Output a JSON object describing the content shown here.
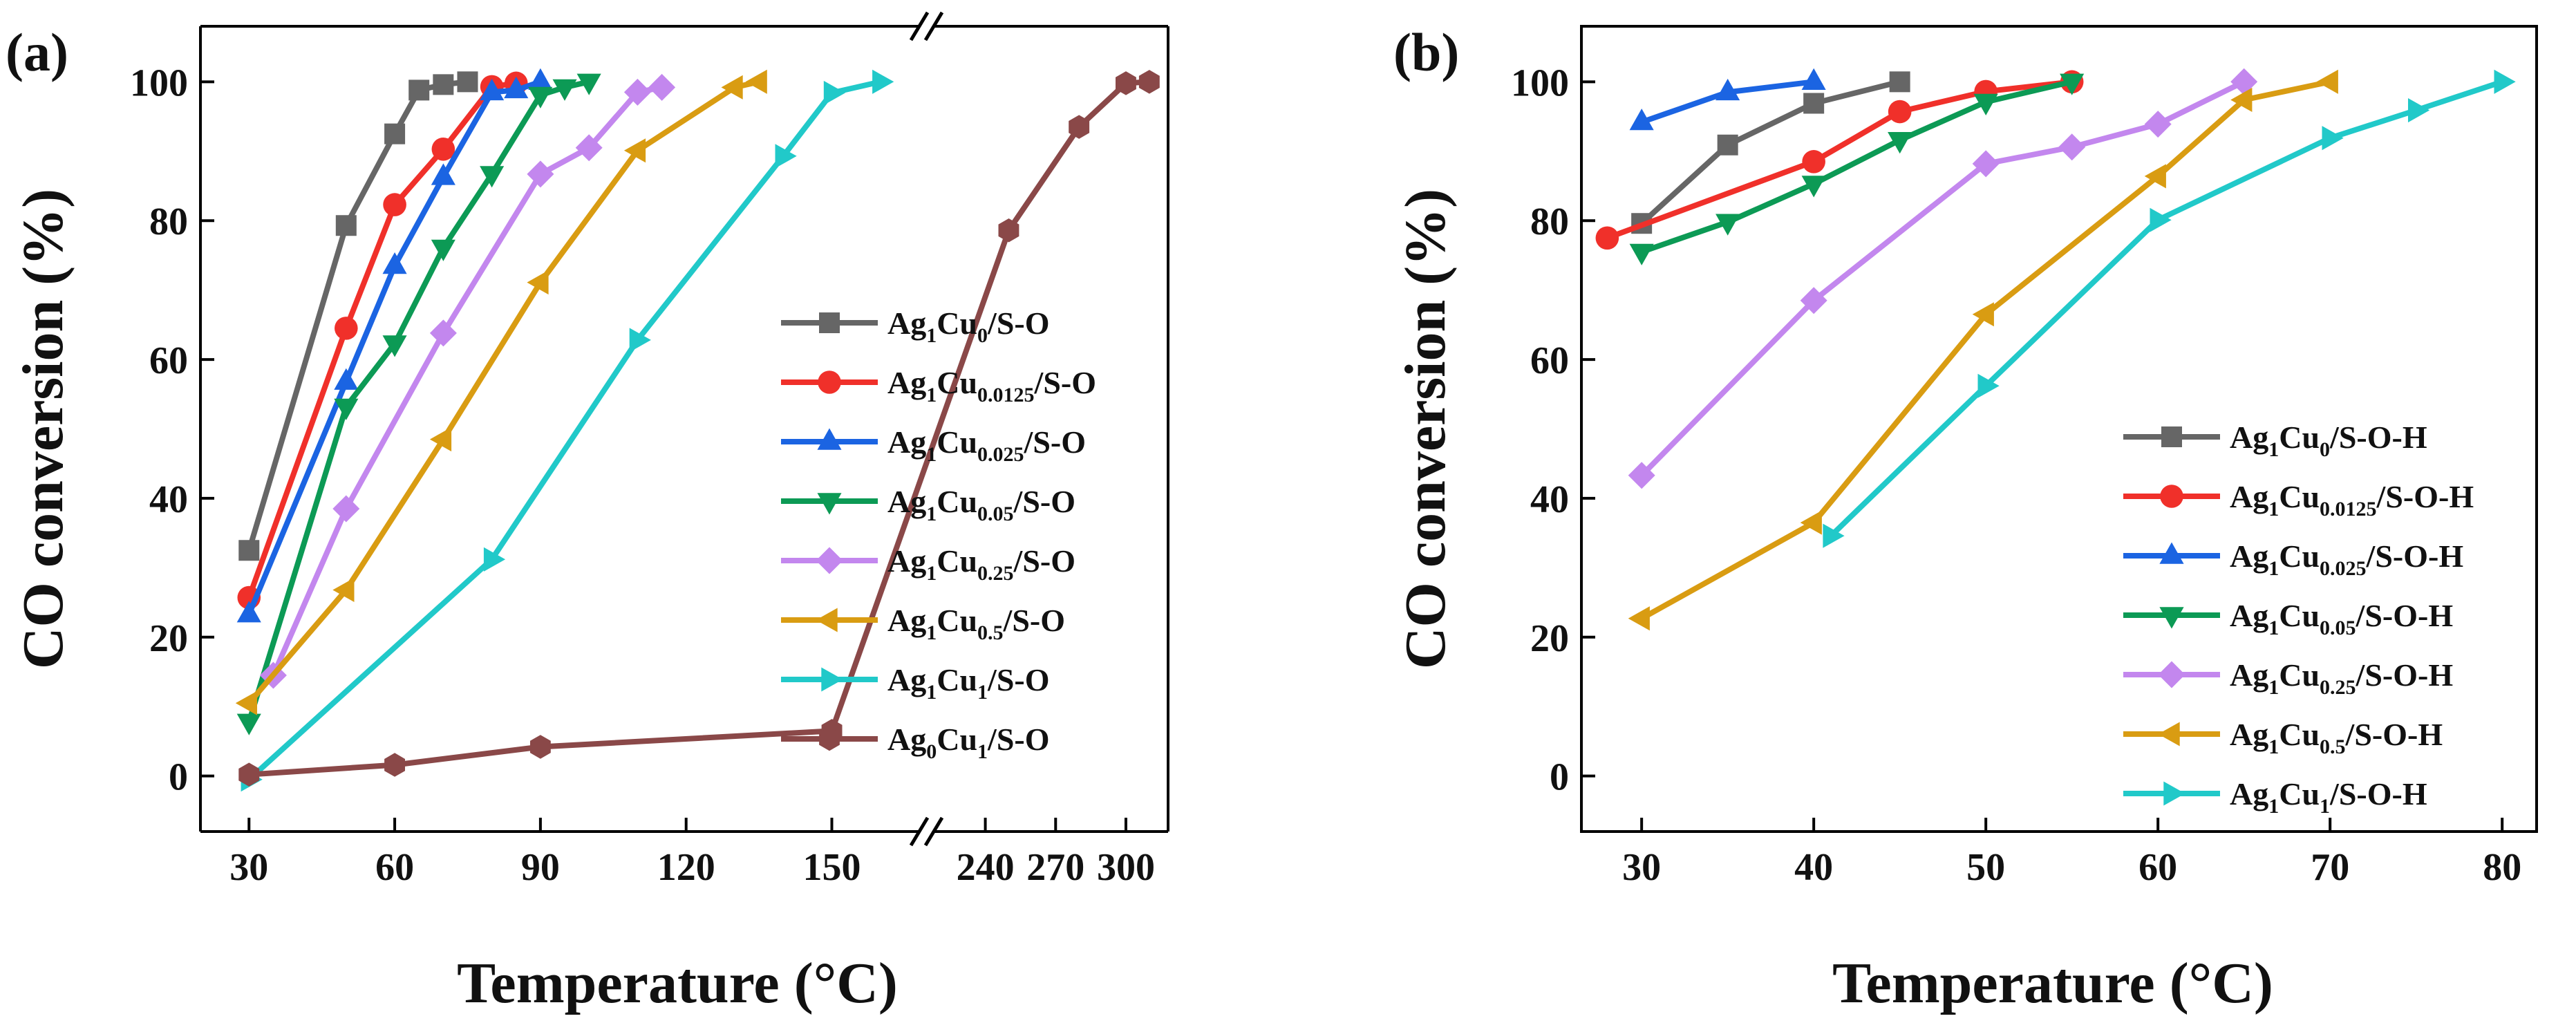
{
  "chart_data": [
    {
      "panel_label": "(a)",
      "type": "line",
      "xlabel": "Temperature (°C)",
      "ylabel": "CO conversion (%)",
      "ylim": [
        -8,
        108
      ],
      "yticks": [
        "0",
        "20",
        "40",
        "60",
        "80",
        "100"
      ],
      "x_axis_break": {
        "lower_range": [
          20,
          168
        ],
        "upper_range": [
          218,
          318
        ]
      },
      "xticks": [
        "30",
        "60",
        "90",
        "120",
        "150",
        "240",
        "270",
        "300"
      ],
      "legend_position": "bottom-right",
      "series": [
        {
          "name": "Ag1Cu0/S-O",
          "base": "Ag",
          "s1": "1",
          "mid": "Cu",
          "s2": "0",
          "tail": "/S-O",
          "color": "#666666",
          "marker": "square",
          "points": [
            [
              30,
              32.5
            ],
            [
              50,
              79.3
            ],
            [
              60,
              92.5
            ],
            [
              65,
              98.8
            ],
            [
              70,
              99.6
            ],
            [
              75,
              100
            ]
          ]
        },
        {
          "name": "Ag1Cu0.0125/S-O",
          "base": "Ag",
          "s1": "1",
          "mid": "Cu",
          "s2": "0.0125",
          "tail": "/S-O",
          "color": "#f0302a",
          "marker": "circle",
          "points": [
            [
              30,
              25.7
            ],
            [
              50,
              64.5
            ],
            [
              60,
              82.3
            ],
            [
              70,
              90.3
            ],
            [
              80,
              99.3
            ],
            [
              85,
              99.8
            ]
          ]
        },
        {
          "name": "Ag1Cu0.025/S-O",
          "base": "Ag",
          "s1": "1",
          "mid": "Cu",
          "s2": "0.025",
          "tail": "/S-O",
          "color": "#1b64e2",
          "marker": "triangle-up",
          "points": [
            [
              30,
              23.3
            ],
            [
              50,
              56.8
            ],
            [
              60,
              73.5
            ],
            [
              70,
              86.3
            ],
            [
              80,
              98.5
            ],
            [
              85,
              98.8
            ],
            [
              90,
              100
            ]
          ]
        },
        {
          "name": "Ag1Cu0.05/S-O",
          "base": "Ag",
          "s1": "1",
          "mid": "Cu",
          "s2": "0.05",
          "tail": "/S-O",
          "color": "#0c9a55",
          "marker": "triangle-down",
          "points": [
            [
              30,
              7.8
            ],
            [
              50,
              53.2
            ],
            [
              60,
              62.3
            ],
            [
              70,
              76.1
            ],
            [
              80,
              86.7
            ],
            [
              90,
              98.1
            ],
            [
              95,
              99.2
            ],
            [
              100,
              100
            ]
          ]
        },
        {
          "name": "Ag1Cu0.25/S-O",
          "base": "Ag",
          "s1": "1",
          "mid": "Cu",
          "s2": "0.25",
          "tail": "/S-O",
          "color": "#c387ee",
          "marker": "diamond",
          "points": [
            [
              35,
              14.5
            ],
            [
              50,
              38.5
            ],
            [
              70,
              63.8
            ],
            [
              90,
              86.7
            ],
            [
              100,
              90.5
            ],
            [
              110,
              98.5
            ],
            [
              115,
              99.2
            ]
          ]
        },
        {
          "name": "Ag1Cu0.5/S-O",
          "base": "Ag",
          "s1": "1",
          "mid": "Cu",
          "s2": "0.5",
          "tail": "/S-O",
          "color": "#d99c12",
          "marker": "triangle-left",
          "points": [
            [
              30,
              10.5
            ],
            [
              50,
              26.8
            ],
            [
              70,
              48.5
            ],
            [
              90,
              71.1
            ],
            [
              110,
              90.1
            ],
            [
              130,
              99.2
            ],
            [
              135,
              100
            ]
          ]
        },
        {
          "name": "Ag1Cu1/S-O",
          "base": "Ag",
          "s1": "1",
          "mid": "Cu",
          "s2": "1",
          "tail": "/S-O",
          "color": "#21c9c9",
          "marker": "triangle-right",
          "points": [
            [
              30,
              -0.5
            ],
            [
              80,
              31.2
            ],
            [
              110,
              62.8
            ],
            [
              140,
              89.3
            ],
            [
              150,
              98.4
            ],
            [
              160,
              100
            ]
          ]
        },
        {
          "name": "Ag0Cu1/S-O",
          "base": "Ag",
          "s1": "0",
          "mid": "Cu",
          "s2": "1",
          "tail": "/S-O",
          "color": "#8a4848",
          "marker": "hexagon",
          "points": [
            [
              30,
              0.2
            ],
            [
              60,
              1.6
            ],
            [
              90,
              4.2
            ],
            [
              150,
              6.5
            ],
            [
              250,
              78.6
            ],
            [
              280,
              93.5
            ],
            [
              300,
              99.8
            ],
            [
              310,
              100
            ]
          ]
        }
      ]
    },
    {
      "panel_label": "(b)",
      "type": "line",
      "xlabel": "Temperature (°C)",
      "ylabel": "CO conversion (%)",
      "xlim": [
        26.5,
        82
      ],
      "ylim": [
        -8,
        108
      ],
      "xticks": [
        "30",
        "40",
        "50",
        "60",
        "70",
        "80"
      ],
      "yticks": [
        "0",
        "20",
        "40",
        "60",
        "80",
        "100"
      ],
      "legend_position": "bottom-right",
      "series": [
        {
          "name": "Ag1Cu0/S-O-H",
          "base": "Ag",
          "s1": "1",
          "mid": "Cu",
          "s2": "0",
          "tail": "/S-O-H",
          "color": "#666666",
          "marker": "square",
          "points": [
            [
              30,
              79.6
            ],
            [
              35,
              90.9
            ],
            [
              40,
              96.9
            ],
            [
              45,
              100
            ]
          ]
        },
        {
          "name": "Ag1Cu0.0125/S-O-H",
          "base": "Ag",
          "s1": "1",
          "mid": "Cu",
          "s2": "0.0125",
          "tail": "/S-O-H",
          "color": "#f0302a",
          "marker": "circle",
          "points": [
            [
              28,
              77.5
            ],
            [
              40,
              88.5
            ],
            [
              45,
              95.7
            ],
            [
              50,
              98.6
            ],
            [
              55,
              100
            ]
          ]
        },
        {
          "name": "Ag1Cu0.025/S-O-H",
          "base": "Ag",
          "s1": "1",
          "mid": "Cu",
          "s2": "0.025",
          "tail": "/S-O-H",
          "color": "#1b64e2",
          "marker": "triangle-up",
          "points": [
            [
              30,
              94.2
            ],
            [
              35,
              98.5
            ],
            [
              40,
              100
            ]
          ]
        },
        {
          "name": "Ag1Cu0.05/S-O-H",
          "base": "Ag",
          "s1": "1",
          "mid": "Cu",
          "s2": "0.05",
          "tail": "/S-O-H",
          "color": "#0c9a55",
          "marker": "triangle-down",
          "points": [
            [
              30,
              75.5
            ],
            [
              35,
              79.8
            ],
            [
              40,
              85.3
            ],
            [
              45,
              91.6
            ],
            [
              50,
              97.1
            ],
            [
              55,
              100
            ]
          ]
        },
        {
          "name": "Ag1Cu0.25/S-O-H",
          "base": "Ag",
          "s1": "1",
          "mid": "Cu",
          "s2": "0.25",
          "tail": "/S-O-H",
          "color": "#c387ee",
          "marker": "diamond",
          "points": [
            [
              30,
              43.3
            ],
            [
              40,
              68.5
            ],
            [
              50,
              88.2
            ],
            [
              55,
              90.6
            ],
            [
              60,
              93.9
            ],
            [
              65,
              100
            ]
          ]
        },
        {
          "name": "Ag1Cu0.5/S-O-H",
          "base": "Ag",
          "s1": "1",
          "mid": "Cu",
          "s2": "0.5",
          "tail": "/S-O-H",
          "color": "#d99c12",
          "marker": "triangle-left",
          "points": [
            [
              30,
              22.7
            ],
            [
              40,
              36.5
            ],
            [
              50,
              66.5
            ],
            [
              60,
              86.4
            ],
            [
              65,
              97.4
            ],
            [
              70,
              100
            ]
          ]
        },
        {
          "name": "Ag1Cu1/S-O-H",
          "base": "Ag",
          "s1": "1",
          "mid": "Cu",
          "s2": "1",
          "tail": "/S-O-H",
          "color": "#21c9c9",
          "marker": "triangle-right",
          "points": [
            [
              41,
              34.6
            ],
            [
              50,
              56.2
            ],
            [
              60,
              80.1
            ],
            [
              70,
              91.9
            ],
            [
              75,
              95.9
            ],
            [
              80,
              100
            ]
          ]
        }
      ]
    }
  ]
}
